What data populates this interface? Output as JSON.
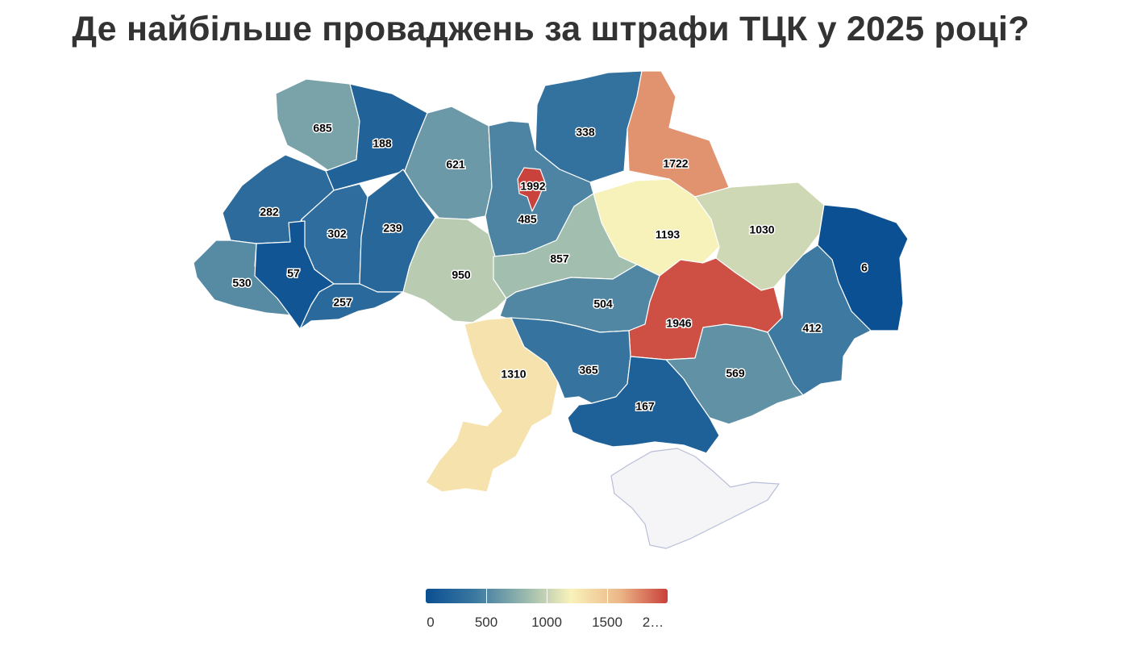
{
  "title": "Де найбільше проваджень за штрафи ТЦК у 2025 році?",
  "chart_data": {
    "type": "choropleth",
    "title": "Де найбільше проваджень за штрафи ТЦК у 2025 році?",
    "color_scale": {
      "min": 0,
      "max": 2000,
      "colors": [
        "#0a4f92",
        "#3a77a0",
        "#93b5ad",
        "#f9f2ba",
        "#ecb888",
        "#c9403a"
      ],
      "ticks": [
        "0",
        "500",
        "1000",
        "1500",
        "2…"
      ]
    },
    "regions": [
      {
        "id": "r1",
        "value": 685
      },
      {
        "id": "r2",
        "value": 188
      },
      {
        "id": "r3",
        "value": 621
      },
      {
        "id": "r4",
        "value": 338
      },
      {
        "id": "r5",
        "value": 1722
      },
      {
        "id": "r6",
        "value": 485
      },
      {
        "id": "r7",
        "value": 1992
      },
      {
        "id": "r8",
        "value": 282
      },
      {
        "id": "r9",
        "value": 302
      },
      {
        "id": "r10",
        "value": 239
      },
      {
        "id": "r11",
        "value": 1193
      },
      {
        "id": "r12",
        "value": 1030
      },
      {
        "id": "r13",
        "value": 6
      },
      {
        "id": "r14",
        "value": 530
      },
      {
        "id": "r15",
        "value": 57
      },
      {
        "id": "r16",
        "value": 950
      },
      {
        "id": "r17",
        "value": 857
      },
      {
        "id": "r18",
        "value": 257
      },
      {
        "id": "r19",
        "value": 504
      },
      {
        "id": "r20",
        "value": 1946
      },
      {
        "id": "r21",
        "value": 412
      },
      {
        "id": "r22",
        "value": 1310
      },
      {
        "id": "r23",
        "value": 365
      },
      {
        "id": "r24",
        "value": 569
      },
      {
        "id": "r25",
        "value": 167
      }
    ]
  }
}
